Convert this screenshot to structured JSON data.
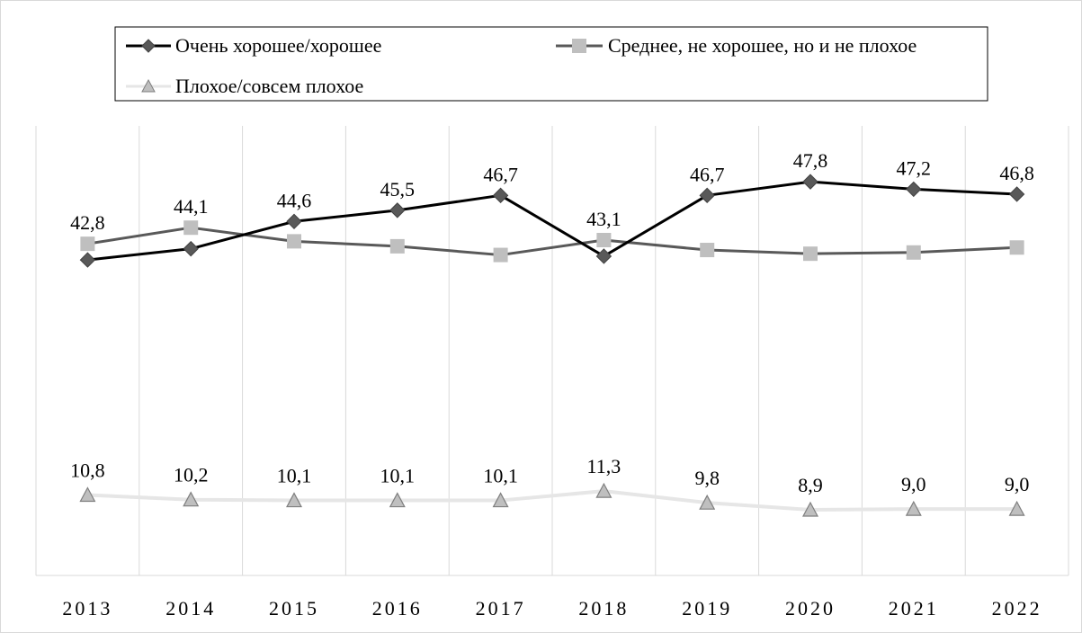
{
  "chart_data": {
    "type": "line",
    "categories": [
      "2013",
      "2014",
      "2015",
      "2016",
      "2017",
      "2018",
      "2019",
      "2020",
      "2021",
      "2022"
    ],
    "series": [
      {
        "name": "Очень хорошее/хорошее",
        "values": [
          null,
          null,
          44.6,
          45.5,
          46.7,
          null,
          46.7,
          47.8,
          47.2,
          46.8
        ],
        "color": "#000000",
        "marker_color": "#595959",
        "marker": "diamond"
      },
      {
        "name": "Среднее, не хорошее, но и не плохое",
        "values": [
          42.8,
          44.1,
          null,
          null,
          null,
          43.1,
          null,
          null,
          null,
          null
        ],
        "color": "#595959",
        "marker_color": "#bfbfbf",
        "marker": "square"
      },
      {
        "name": "Плохое/совсем плохое",
        "values": [
          10.8,
          10.2,
          10.1,
          10.1,
          10.1,
          11.3,
          9.8,
          8.9,
          9.0,
          9.0
        ],
        "color": "#e6e6e6",
        "marker_color": "#bfbfbf",
        "marker": "triangle"
      }
    ],
    "data_labels": [
      "42,8",
      "44,1",
      "44,6",
      "45,5",
      "46,7",
      "43,1",
      "46,7",
      "47,8",
      "47,2",
      "46,8"
    ],
    "low_labels": [
      "10,8",
      "10,2",
      "10,1",
      "10,1",
      "10,1",
      "11,3",
      "9,8",
      "8,9",
      "9,0",
      "9,0"
    ],
    "grid": "vertical",
    "legend_position": "top"
  }
}
